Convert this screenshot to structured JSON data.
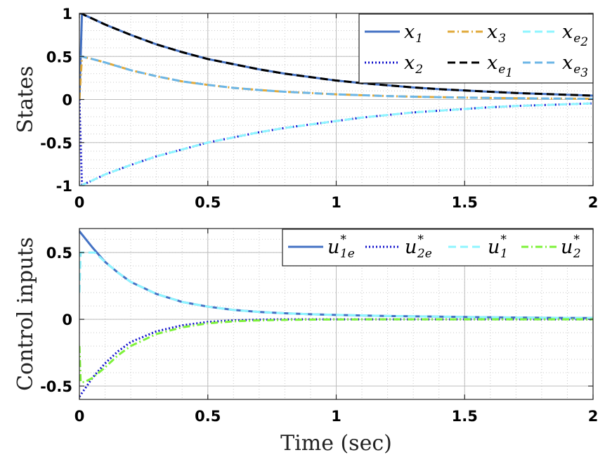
{
  "chart_data": [
    {
      "type": "line",
      "ylabel": "States",
      "xlim": [
        0,
        2
      ],
      "ylim": [
        -1,
        1
      ],
      "xticks": [
        0,
        0.5,
        1,
        1.5,
        2
      ],
      "xtick_labels": [
        "0",
        "0.5",
        "1",
        "1.5",
        "2"
      ],
      "yticks": [
        -1,
        -0.5,
        0,
        0.5,
        1
      ],
      "ytick_labels": [
        "-1",
        "-0.5",
        "0",
        "0.5",
        "1"
      ],
      "grid": true,
      "minor_grid": true,
      "legend_position": "top-right",
      "series": [
        {
          "name": "x1",
          "label_main": "x",
          "label_sub": "1",
          "color": "#4472c4",
          "style": "solid",
          "x": [
            0,
            0.01,
            0.02,
            0.05,
            0.1,
            0.2,
            0.3,
            0.4,
            0.5,
            0.6,
            0.7,
            0.8,
            0.9,
            1.0,
            1.1,
            1.2,
            1.3,
            1.4,
            1.5,
            1.6,
            1.7,
            1.8,
            1.9,
            2.0
          ],
          "y": [
            0,
            1.0,
            0.98,
            0.94,
            0.87,
            0.75,
            0.64,
            0.55,
            0.47,
            0.41,
            0.35,
            0.3,
            0.26,
            0.22,
            0.19,
            0.165,
            0.14,
            0.12,
            0.105,
            0.09,
            0.075,
            0.065,
            0.055,
            0.045
          ]
        },
        {
          "name": "x2",
          "label_main": "x",
          "label_sub": "2",
          "color": "#1010cc",
          "style": "dotted",
          "x": [
            0,
            0.01,
            0.02,
            0.05,
            0.1,
            0.2,
            0.3,
            0.4,
            0.5,
            0.6,
            0.7,
            0.8,
            0.9,
            1.0,
            1.1,
            1.2,
            1.3,
            1.4,
            1.5,
            1.6,
            1.7,
            1.8,
            1.9,
            2.0
          ],
          "y": [
            0,
            -1.0,
            -0.98,
            -0.94,
            -0.87,
            -0.76,
            -0.66,
            -0.58,
            -0.5,
            -0.44,
            -0.38,
            -0.33,
            -0.29,
            -0.25,
            -0.21,
            -0.18,
            -0.15,
            -0.13,
            -0.11,
            -0.09,
            -0.075,
            -0.065,
            -0.055,
            -0.045
          ]
        },
        {
          "name": "x3",
          "label_main": "x",
          "label_sub": "3",
          "color": "#e0a93a",
          "style": "dashdot",
          "x": [
            0,
            0.01,
            0.02,
            0.05,
            0.1,
            0.2,
            0.3,
            0.4,
            0.5,
            0.6,
            0.7,
            0.8,
            0.9,
            1.0,
            1.1,
            1.2,
            1.3,
            1.4,
            1.5,
            1.6,
            1.7,
            1.8,
            1.9,
            2.0
          ],
          "y": [
            0,
            0.5,
            0.49,
            0.47,
            0.43,
            0.34,
            0.27,
            0.21,
            0.17,
            0.135,
            0.11,
            0.09,
            0.075,
            0.06,
            0.05,
            0.04,
            0.033,
            0.027,
            0.022,
            0.018,
            0.015,
            0.012,
            0.01,
            0.008
          ]
        },
        {
          "name": "xe1",
          "label_main": "x",
          "label_sub": "e",
          "label_subsub": "1",
          "color": "#000000",
          "style": "dashed",
          "x": [
            0,
            0.01,
            0.02,
            0.05,
            0.1,
            0.2,
            0.3,
            0.4,
            0.5,
            0.6,
            0.7,
            0.8,
            0.9,
            1.0,
            1.1,
            1.2,
            1.3,
            1.4,
            1.5,
            1.6,
            1.7,
            1.8,
            1.9,
            2.0
          ],
          "y": [
            1.0,
            1.0,
            0.98,
            0.94,
            0.87,
            0.75,
            0.64,
            0.55,
            0.47,
            0.41,
            0.35,
            0.3,
            0.26,
            0.22,
            0.19,
            0.165,
            0.14,
            0.12,
            0.105,
            0.09,
            0.075,
            0.065,
            0.055,
            0.045
          ]
        },
        {
          "name": "xe2",
          "label_main": "x",
          "label_sub": "e",
          "label_subsub": "2",
          "color": "#8ef5ff",
          "style": "dashed",
          "x": [
            0,
            0.01,
            0.02,
            0.05,
            0.1,
            0.2,
            0.3,
            0.4,
            0.5,
            0.6,
            0.7,
            0.8,
            0.9,
            1.0,
            1.1,
            1.2,
            1.3,
            1.4,
            1.5,
            1.6,
            1.7,
            1.8,
            1.9,
            2.0
          ],
          "y": [
            -1.0,
            -1.0,
            -0.98,
            -0.94,
            -0.87,
            -0.76,
            -0.66,
            -0.58,
            -0.5,
            -0.44,
            -0.38,
            -0.33,
            -0.29,
            -0.25,
            -0.21,
            -0.18,
            -0.15,
            -0.13,
            -0.11,
            -0.09,
            -0.075,
            -0.065,
            -0.055,
            -0.045
          ]
        },
        {
          "name": "xe3",
          "label_main": "x",
          "label_sub": "e",
          "label_subsub": "3",
          "color": "#6cb6e6",
          "style": "dashed",
          "x": [
            0,
            0.01,
            0.02,
            0.05,
            0.1,
            0.2,
            0.3,
            0.4,
            0.5,
            0.6,
            0.7,
            0.8,
            0.9,
            1.0,
            1.1,
            1.2,
            1.3,
            1.4,
            1.5,
            1.6,
            1.7,
            1.8,
            1.9,
            2.0
          ],
          "y": [
            0.5,
            0.5,
            0.49,
            0.47,
            0.43,
            0.34,
            0.27,
            0.21,
            0.17,
            0.135,
            0.11,
            0.09,
            0.075,
            0.06,
            0.05,
            0.04,
            0.033,
            0.027,
            0.022,
            0.018,
            0.015,
            0.012,
            0.01,
            0.008
          ]
        }
      ],
      "legend_order": [
        "x1",
        "x3",
        "xe2",
        "x2",
        "xe1",
        "xe3"
      ]
    },
    {
      "type": "line",
      "xlabel": "Time (sec)",
      "ylabel": "Control inputs",
      "xlim": [
        0,
        2
      ],
      "ylim": [
        -0.6,
        0.68
      ],
      "xticks": [
        0,
        0.5,
        1,
        1.5,
        2
      ],
      "xtick_labels": [
        "0",
        "0.5",
        "1",
        "1.5",
        "2"
      ],
      "yticks": [
        -0.5,
        0,
        0.5
      ],
      "ytick_labels": [
        "-0.5",
        "0",
        "0.5"
      ],
      "grid": true,
      "minor_grid": true,
      "legend_position": "top-right",
      "series": [
        {
          "name": "u1e*",
          "label_main": "u",
          "label_sub": "1e",
          "label_sup": "*",
          "color": "#4472c4",
          "style": "solid",
          "x": [
            0,
            0.05,
            0.1,
            0.15,
            0.2,
            0.3,
            0.4,
            0.5,
            0.6,
            0.7,
            0.8,
            0.9,
            1.0,
            1.2,
            1.4,
            1.6,
            1.8,
            2.0
          ],
          "y": [
            0.66,
            0.54,
            0.43,
            0.35,
            0.28,
            0.19,
            0.13,
            0.095,
            0.07,
            0.055,
            0.045,
            0.038,
            0.033,
            0.025,
            0.02,
            0.015,
            0.012,
            0.01
          ]
        },
        {
          "name": "u2e*",
          "label_main": "u",
          "label_sub": "2e",
          "label_sup": "*",
          "color": "#1010cc",
          "style": "dotted",
          "x": [
            0,
            0.05,
            0.1,
            0.15,
            0.2,
            0.3,
            0.4,
            0.5,
            0.6,
            0.7,
            0.8,
            0.9,
            1.0,
            1.2,
            1.4,
            1.6,
            1.8,
            2.0
          ],
          "y": [
            -0.58,
            -0.44,
            -0.33,
            -0.24,
            -0.17,
            -0.09,
            -0.045,
            -0.02,
            -0.008,
            -0.003,
            0,
            0,
            0,
            0,
            0,
            0,
            0,
            0
          ]
        },
        {
          "name": "u1*",
          "label_main": "u",
          "label_sub": "1",
          "label_sup": "*",
          "color": "#8ef5ff",
          "style": "dashed",
          "x": [
            0,
            0.005,
            0.01,
            0.05,
            0.06,
            0.1,
            0.15,
            0.2,
            0.3,
            0.4,
            0.5,
            0.6,
            0.7,
            0.8,
            0.9,
            1.0,
            1.2,
            1.4,
            1.6,
            1.8,
            2.0
          ],
          "y": [
            0.2,
            0.5,
            0.5,
            0.5,
            0.5,
            0.43,
            0.35,
            0.28,
            0.19,
            0.13,
            0.095,
            0.07,
            0.055,
            0.045,
            0.038,
            0.033,
            0.025,
            0.02,
            0.015,
            0.012,
            0.01
          ]
        },
        {
          "name": "u2*",
          "label_main": "u",
          "label_sub": "2",
          "label_sup": "*",
          "color": "#7ef23a",
          "style": "dashdot",
          "x": [
            0,
            0.005,
            0.02,
            0.05,
            0.1,
            0.15,
            0.2,
            0.3,
            0.4,
            0.5,
            0.6,
            0.7,
            0.8,
            0.9,
            1.0,
            1.2,
            1.4,
            1.6,
            1.8,
            2.0
          ],
          "y": [
            -0.2,
            -0.47,
            -0.47,
            -0.44,
            -0.36,
            -0.27,
            -0.2,
            -0.11,
            -0.06,
            -0.03,
            -0.015,
            -0.008,
            -0.004,
            -0.002,
            -0.001,
            0,
            0,
            0,
            0,
            0
          ]
        }
      ],
      "legend_order": [
        "u1e*",
        "u2e*",
        "u1*",
        "u2*"
      ]
    }
  ]
}
